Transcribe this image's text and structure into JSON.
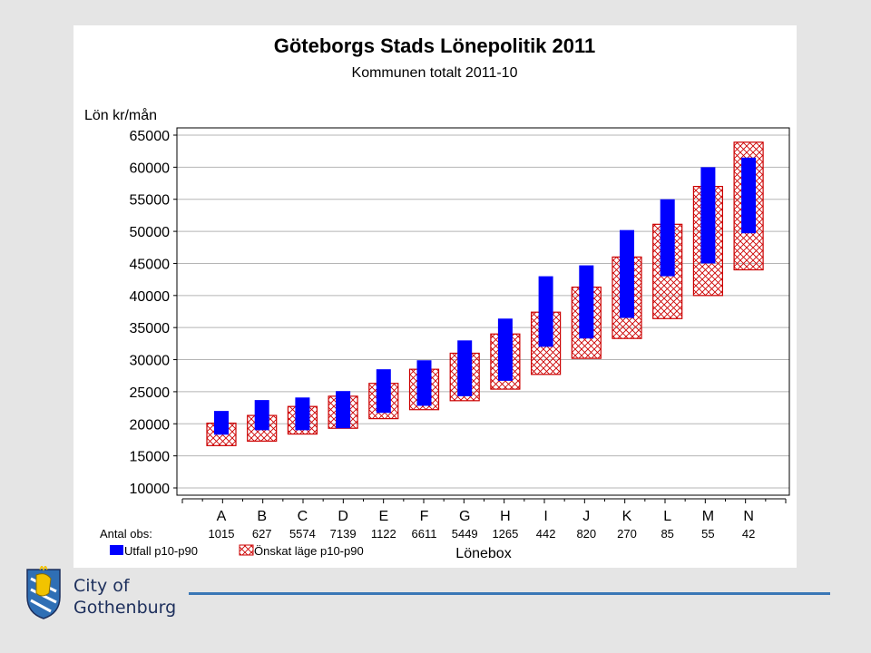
{
  "chart_data": {
    "type": "floating-bar",
    "title": "Göteborgs Stads Lönepolitik 2011",
    "subtitle": "Kommunen totalt 2011-10",
    "ylabel": "Lön kr/mån",
    "xlabel": "Lönebox",
    "ylim": [
      10000,
      65000
    ],
    "yticks": [
      65000,
      60000,
      55000,
      50000,
      45000,
      40000,
      35000,
      30000,
      25000,
      20000,
      15000,
      10000
    ],
    "categories": [
      "A",
      "B",
      "C",
      "D",
      "E",
      "F",
      "G",
      "H",
      "I",
      "J",
      "K",
      "L",
      "M",
      "N"
    ],
    "obs_label": "Antal obs:",
    "obs": [
      "1015",
      "627",
      "5574",
      "7139",
      "1122",
      "6611",
      "5449",
      "1265",
      "442",
      "820",
      "270",
      "85",
      "55",
      "42"
    ],
    "grid": true,
    "legend_placement": "bottom-left",
    "series": [
      {
        "name": "Utfall p10-p90",
        "color": "#0000ff",
        "p10": [
          18300,
          19000,
          19000,
          19300,
          21700,
          22800,
          24300,
          26700,
          32000,
          33300,
          36500,
          43000,
          45000,
          49700
        ],
        "p90": [
          22000,
          23700,
          24100,
          25100,
          28500,
          29900,
          33000,
          36400,
          43000,
          44700,
          50200,
          55000,
          60000,
          61500
        ]
      },
      {
        "name": "Önskat läge p10-p90",
        "color": "#cc0000",
        "p10": [
          16600,
          17300,
          18400,
          19300,
          20800,
          22200,
          23600,
          25400,
          27700,
          30200,
          33300,
          36400,
          40000,
          44000
        ],
        "p90": [
          20100,
          21300,
          22700,
          24300,
          26300,
          28500,
          31000,
          34000,
          37400,
          41300,
          46000,
          51100,
          57000,
          63900
        ]
      }
    ]
  },
  "brand": {
    "line1": "City of",
    "line2": "Gothenburg",
    "logo_icon": "gothenburg-coat-of-arms",
    "rule_color": "#3a77b6"
  }
}
